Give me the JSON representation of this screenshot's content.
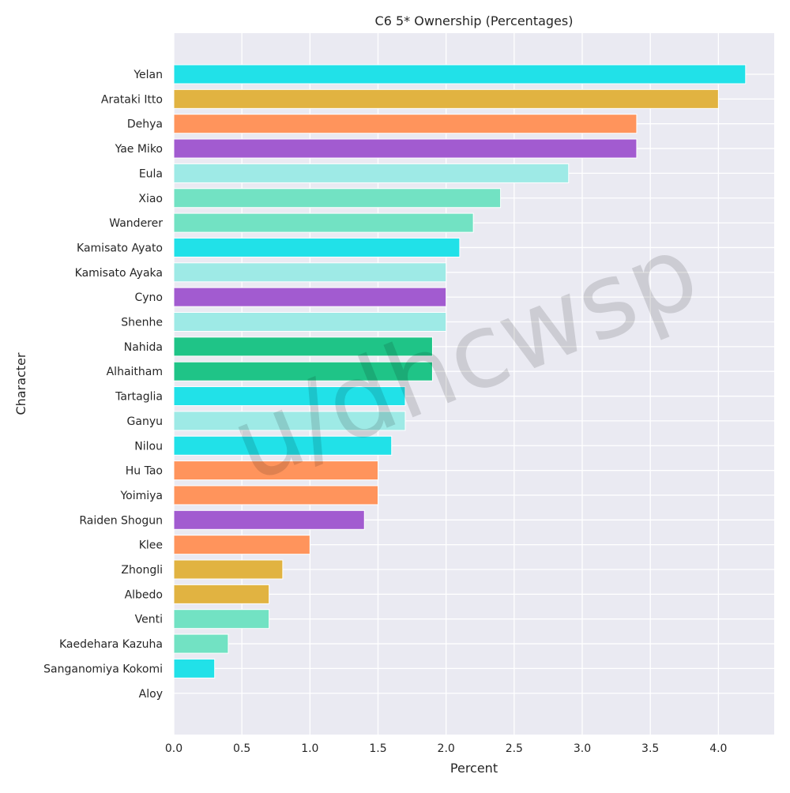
{
  "chart_data": {
    "type": "bar",
    "orientation": "horizontal",
    "title": "C6 5* Ownership (Percentages)",
    "xlabel": "Percent",
    "ylabel": "Character",
    "xlim": [
      0,
      4.41
    ],
    "xticks": [
      0.0,
      0.5,
      1.0,
      1.5,
      2.0,
      2.5,
      3.0,
      3.5,
      4.0
    ],
    "xtick_labels": [
      "0.0",
      "0.5",
      "1.0",
      "1.5",
      "2.0",
      "2.5",
      "3.0",
      "3.5",
      "4.0"
    ],
    "grid": true,
    "categories": [
      "Yelan",
      "Arataki Itto",
      "Dehya",
      "Yae Miko",
      "Eula",
      "Xiao",
      "Wanderer",
      "Kamisato Ayato",
      "Kamisato Ayaka",
      "Cyno",
      "Shenhe",
      "Nahida",
      "Alhaitham",
      "Tartaglia",
      "Ganyu",
      "Nilou",
      "Hu Tao",
      "Yoimiya",
      "Raiden Shogun",
      "Klee",
      "Zhongli",
      "Albedo",
      "Venti",
      "Kaedehara Kazuha",
      "Sanganomiya Kokomi",
      "Aloy"
    ],
    "values": [
      4.2,
      4.0,
      3.4,
      3.4,
      2.9,
      2.4,
      2.2,
      2.1,
      2.0,
      2.0,
      2.0,
      1.9,
      1.9,
      1.7,
      1.7,
      1.6,
      1.5,
      1.5,
      1.4,
      1.0,
      0.8,
      0.7,
      0.7,
      0.4,
      0.3,
      0.0
    ],
    "colors": [
      "#21e1e8",
      "#e1b341",
      "#ff945c",
      "#a25bd0",
      "#9eeae6",
      "#72e2c3",
      "#72e2c3",
      "#21e1e8",
      "#9eeae6",
      "#a25bd0",
      "#9eeae6",
      "#1fc487",
      "#1fc487",
      "#21e1e8",
      "#9eeae6",
      "#21e1e8",
      "#ff945c",
      "#ff945c",
      "#a25bd0",
      "#ff945c",
      "#e1b341",
      "#e1b341",
      "#72e2c3",
      "#72e2c3",
      "#21e1e8",
      "#9eeae6"
    ],
    "watermark": "u/dhcwsp",
    "background_color": "#eaeaf2",
    "grid_color": "#ffffff"
  }
}
